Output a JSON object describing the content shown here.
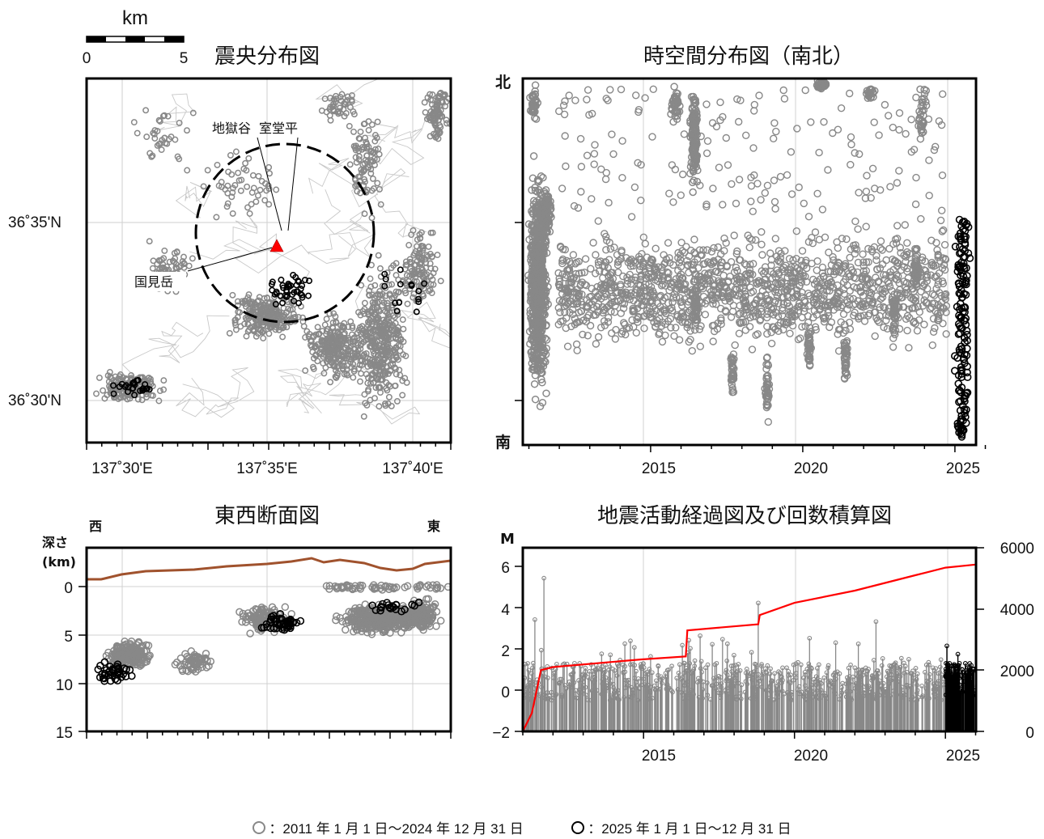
{
  "map": {
    "title": "震央分布図",
    "scale_unit": "km",
    "scale_ticks": [
      "0",
      "5"
    ],
    "lat_labels": [
      "36˚35'N",
      "36˚30'N"
    ],
    "lon_labels": [
      "137˚30'E",
      "137˚35'E",
      "137˚40'E"
    ],
    "places": [
      "地獄谷",
      "室堂平",
      "国見岳"
    ],
    "volcano_color": "#ff0000"
  },
  "timespace": {
    "title": "時空間分布図（南北）",
    "north_label": "北",
    "south_label": "南",
    "x_ticks": [
      "2015",
      "2020",
      "2025"
    ]
  },
  "cross_section": {
    "title": "東西断面図",
    "west_label": "西",
    "east_label": "東",
    "depth_label_line1": "深さ",
    "depth_label_line2": "(km)",
    "y_ticks": [
      "0",
      "5",
      "10",
      "15"
    ],
    "topo_color": "#a0522d"
  },
  "activity": {
    "title": "地震活動経過図及び回数積算図",
    "m_label": "M",
    "left_ticks": [
      "6",
      "4",
      "2",
      "0",
      "−2"
    ],
    "right_ticks": [
      "6000",
      "4000",
      "2000",
      "0"
    ],
    "x_ticks": [
      "2015",
      "2020",
      "2025"
    ],
    "cumulative_color": "#ff0000"
  },
  "legend": {
    "old_text": "：2011 年 1 月 1 日～2024 年 12 月 31 日",
    "new_text": "：2025 年 1 月 1 日～12 月 31 日",
    "old_color": "#888888",
    "new_color": "#000000"
  },
  "chart_data": [
    {
      "type": "scatter",
      "title": "震央分布図",
      "xlabel": "",
      "ylabel": "",
      "xlim": [
        "137˚29'E",
        "137˚41'E"
      ],
      "ylim": [
        "36˚29'N",
        "36˚39'N"
      ],
      "grid": true,
      "series": [
        {
          "name": "2011-2024",
          "color": "#888888"
        },
        {
          "name": "2025",
          "color": "#000000"
        }
      ]
    },
    {
      "type": "scatter",
      "title": "時空間分布図（南北）",
      "x": [
        "2015",
        "2020",
        "2025"
      ],
      "xlim": [
        2011,
        2026
      ],
      "grid": true
    },
    {
      "type": "scatter",
      "title": "東西断面図",
      "ylabel": "深さ (km)",
      "ylim": [
        0,
        15
      ],
      "grid": true
    },
    {
      "type": "line",
      "title": "地震活動経過図及び回数積算図",
      "ylabel": "M",
      "ylim": [
        -2,
        7
      ],
      "y2lim": [
        0,
        6000
      ],
      "xlim": [
        2011,
        2026
      ],
      "cumulative": {
        "x": [
          2011.0,
          2011.3,
          2011.6,
          2012.0,
          2014.9,
          2016.4,
          2016.45,
          2018.8,
          2018.85,
          2020.0,
          2022.0,
          2024.0,
          2025.0,
          2026.0
        ],
        "y": [
          0,
          600,
          2000,
          2100,
          2350,
          2450,
          3300,
          3500,
          3800,
          4200,
          4600,
          5100,
          5350,
          5450
        ]
      }
    }
  ]
}
